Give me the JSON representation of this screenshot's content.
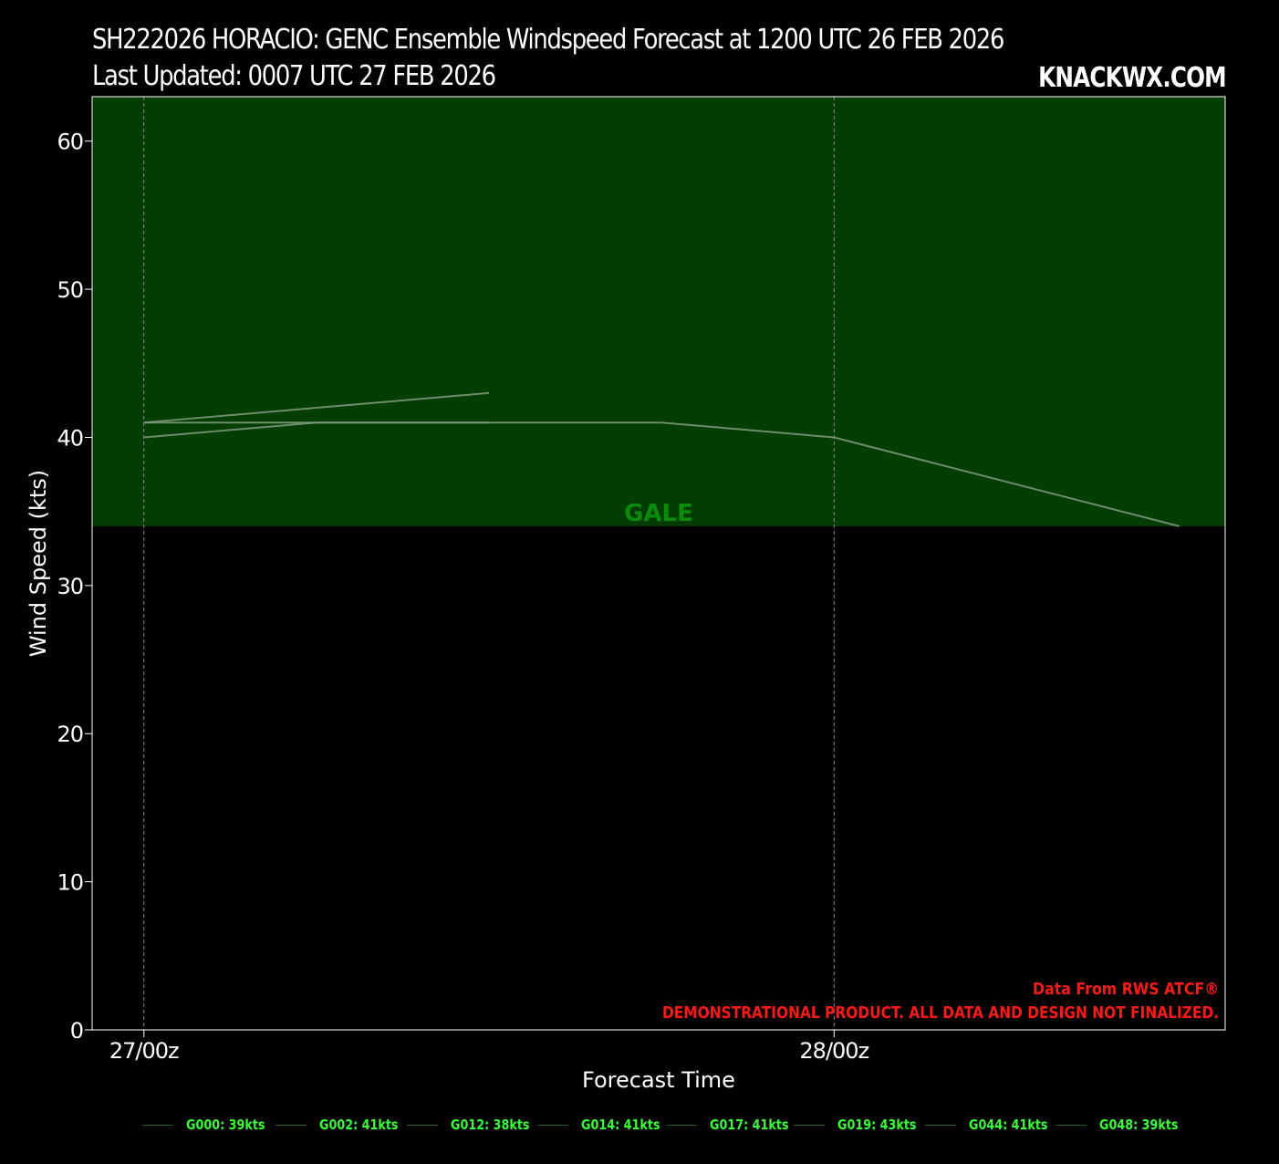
{
  "header": {
    "title": "SH222026 HORACIO: GENC Ensemble Windspeed Forecast at 1200 UTC 26 FEB 2026",
    "subtitle": "Last Updated: 0007 UTC 27 FEB 2026",
    "brand": "KNACKWX.COM"
  },
  "colors": {
    "background": "#000000",
    "gale_band": "#033d02",
    "gale_text": "#0b8a0b",
    "member_line": "#7f9a7f",
    "legend_text": "#3cff3c",
    "disclaimer": "#ff1a1a",
    "axis": "#ffffff"
  },
  "chart_data": {
    "type": "line",
    "xlabel": "Forecast Time",
    "ylabel": "Wind Speed (kts)",
    "ylim": [
      0,
      63
    ],
    "yticks": [
      0,
      10,
      20,
      30,
      40,
      50,
      60
    ],
    "x_unit": "hours since 27/00z",
    "xlim": [
      -1.8,
      37.6
    ],
    "xticks": [
      {
        "x": 0,
        "label": "27/00z"
      },
      {
        "x": 24,
        "label": "28/00z"
      }
    ],
    "grid": "vertical dashed at x ticks",
    "bands": [
      {
        "label": "GALE",
        "from": 34,
        "to": 63,
        "color": "#033d02"
      }
    ],
    "series": [
      {
        "name": "G000: 39kts",
        "points": [
          [
            0,
            41
          ],
          [
            6,
            41
          ],
          [
            12,
            41
          ],
          [
            18,
            41
          ],
          [
            24,
            40
          ],
          [
            36,
            34
          ]
        ]
      },
      {
        "name": "G002: 41kts",
        "points": [
          [
            0,
            41
          ],
          [
            12,
            43
          ]
        ]
      },
      {
        "name": "G012: 38kts",
        "points": [
          [
            0,
            40
          ],
          [
            6,
            41
          ],
          [
            12,
            41
          ]
        ]
      },
      {
        "name": "G014: 41kts",
        "points": []
      },
      {
        "name": "G017: 41kts",
        "points": []
      },
      {
        "name": "G019: 43kts",
        "points": []
      },
      {
        "name": "G044: 41kts",
        "points": []
      },
      {
        "name": "G048: 39kts",
        "points": []
      }
    ],
    "annotations": {
      "source": "Data From RWS ATCF®",
      "disclaimer": "DEMONSTRATIONAL PRODUCT. ALL DATA AND DESIGN NOT FINALIZED."
    },
    "legend_position": "bottom"
  }
}
